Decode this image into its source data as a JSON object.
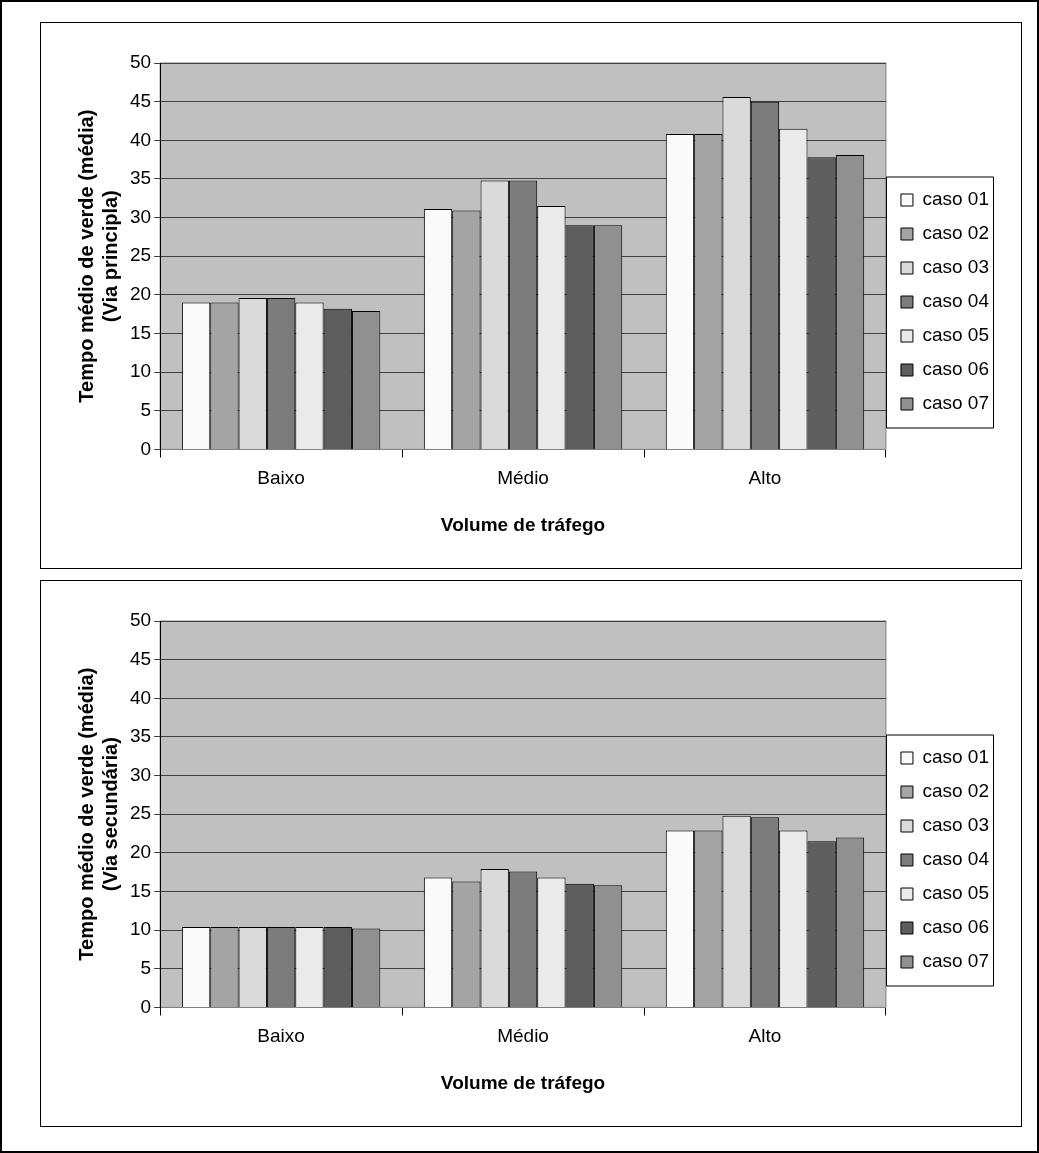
{
  "chart_data": [
    {
      "type": "bar",
      "xlabel": "Volume de tráfego",
      "ylabel": "Tempo médio de verde (média)\n(Via principla)",
      "categories": [
        "Baixo",
        "Médio",
        "Alto"
      ],
      "series": [
        {
          "name": "caso 01",
          "color": "#fafafa",
          "values": [
            19.0,
            31.1,
            40.8
          ]
        },
        {
          "name": "caso 02",
          "color": "#a4a4a4",
          "values": [
            19.0,
            30.9,
            40.8
          ]
        },
        {
          "name": "caso 03",
          "color": "#dadada",
          "values": [
            19.6,
            34.8,
            45.6
          ]
        },
        {
          "name": "caso 04",
          "color": "#7c7c7c",
          "values": [
            19.6,
            34.8,
            45.0
          ]
        },
        {
          "name": "caso 05",
          "color": "#eaeaea",
          "values": [
            19.0,
            31.5,
            41.5
          ]
        },
        {
          "name": "caso 06",
          "color": "#5e5e5e",
          "values": [
            18.2,
            29.0,
            37.8
          ]
        },
        {
          "name": "caso 07",
          "color": "#909090",
          "values": [
            17.9,
            29.0,
            38.1
          ]
        }
      ],
      "ylim": [
        0,
        50
      ],
      "yticks": [
        0,
        5,
        10,
        15,
        20,
        25,
        30,
        35,
        40,
        45,
        50
      ],
      "grid": "y",
      "legend": "right"
    },
    {
      "type": "bar",
      "xlabel": "Volume de tráfego",
      "ylabel": "Tempo médio de verde (média)\n(Via secundária)",
      "categories": [
        "Baixo",
        "Médio",
        "Alto"
      ],
      "series": [
        {
          "name": "caso 01",
          "color": "#fafafa",
          "values": [
            10.4,
            16.8,
            22.9
          ]
        },
        {
          "name": "caso 02",
          "color": "#a4a4a4",
          "values": [
            10.4,
            16.3,
            22.9
          ]
        },
        {
          "name": "caso 03",
          "color": "#dadada",
          "values": [
            10.4,
            17.9,
            24.8
          ]
        },
        {
          "name": "caso 04",
          "color": "#7c7c7c",
          "values": [
            10.4,
            17.6,
            24.6
          ]
        },
        {
          "name": "caso 05",
          "color": "#eaeaea",
          "values": [
            10.4,
            16.8,
            22.9
          ]
        },
        {
          "name": "caso 06",
          "color": "#5e5e5e",
          "values": [
            10.4,
            16.0,
            21.5
          ]
        },
        {
          "name": "caso 07",
          "color": "#909090",
          "values": [
            10.2,
            15.8,
            22.0
          ]
        }
      ],
      "ylim": [
        0,
        50
      ],
      "yticks": [
        0,
        5,
        10,
        15,
        20,
        25,
        30,
        35,
        40,
        45,
        50
      ],
      "grid": "y",
      "legend": "right"
    }
  ]
}
